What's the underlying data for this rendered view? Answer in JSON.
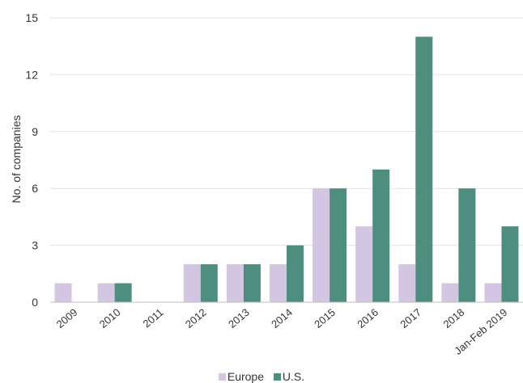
{
  "chart_data": {
    "type": "bar",
    "ylabel": "No. of companies",
    "ylim": [
      0,
      15
    ],
    "yticks": [
      0,
      3,
      6,
      9,
      12,
      15
    ],
    "grid": true,
    "legend_position": "bottom",
    "categories": [
      "2009",
      "2010",
      "2011",
      "2012",
      "2013",
      "2014",
      "2015",
      "2016",
      "2017",
      "2018",
      "Jan-Feb 2019"
    ],
    "series": [
      {
        "name": "Europe",
        "color": "#d4c5e2",
        "values": [
          1,
          1,
          0,
          2,
          2,
          2,
          6,
          4,
          2,
          1,
          1
        ]
      },
      {
        "name": "U.S.",
        "color": "#4e8e7f",
        "values": [
          0,
          1,
          0,
          2,
          2,
          3,
          6,
          7,
          14,
          6,
          4
        ]
      }
    ]
  }
}
